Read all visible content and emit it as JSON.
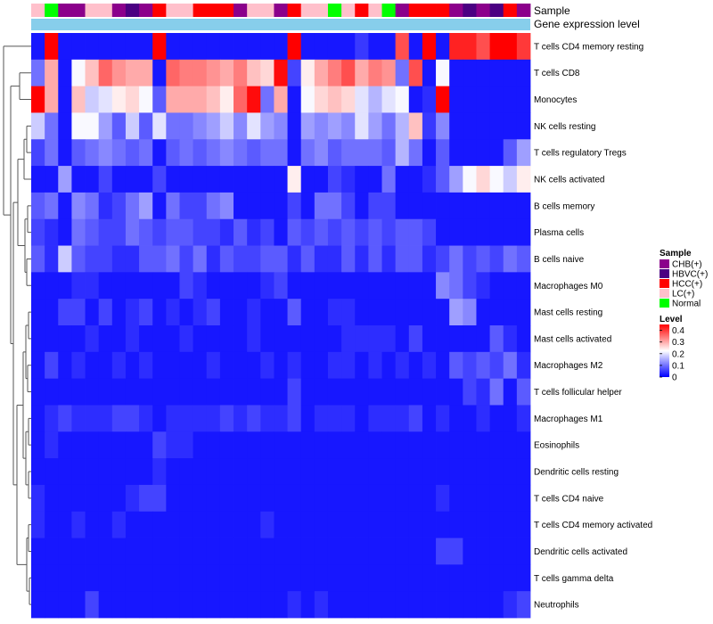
{
  "chart_data": {
    "type": "heatmap",
    "title": "",
    "annotations": [
      {
        "name": "Sample",
        "type": "categorical"
      },
      {
        "name": "Gene expression level",
        "type": "bar",
        "color": "#87ceeb"
      }
    ],
    "sample_groups": [
      {
        "label": "CHB(+)",
        "color": "#8b008b"
      },
      {
        "label": "HBVC(+)",
        "color": "#4b0082"
      },
      {
        "label": "HCC(+)",
        "color": "#ff0000"
      },
      {
        "label": "LC(+)",
        "color": "#ffc0cb"
      },
      {
        "label": "Normal",
        "color": "#00ff00"
      }
    ],
    "sample_annotation": [
      "LC(+)",
      "Normal",
      "CHB(+)",
      "CHB(+)",
      "LC(+)",
      "LC(+)",
      "CHB(+)",
      "HBVC(+)",
      "CHB(+)",
      "HCC(+)",
      "LC(+)",
      "LC(+)",
      "HCC(+)",
      "HCC(+)",
      "HCC(+)",
      "CHB(+)",
      "LC(+)",
      "LC(+)",
      "CHB(+)",
      "HCC(+)",
      "LC(+)",
      "LC(+)",
      "Normal",
      "LC(+)",
      "HCC(+)",
      "LC(+)",
      "Normal",
      "CHB(+)",
      "HCC(+)",
      "HCC(+)",
      "HCC(+)",
      "CHB(+)",
      "HBVC(+)",
      "CHB(+)",
      "HBVC(+)",
      "HCC(+)",
      "CHB(+)"
    ],
    "rows": [
      "T cells CD4 memory resting",
      "T cells CD8",
      "Monocytes",
      "NK cells resting",
      "T cells regulatory  Tregs",
      "NK cells activated",
      "B cells memory",
      "Plasma cells",
      "B cells naive",
      "Macrophages M0",
      "Mast cells resting",
      "Mast cells activated",
      "Macrophages M2",
      "T cells follicular helper",
      "Macrophages M1",
      "Eosinophils",
      "Dendritic cells resting",
      "T cells CD4 naive",
      "T cells CD4 memory activated",
      "Dendritic cells activated",
      "T cells gamma delta",
      "Neutrophils"
    ],
    "legend": {
      "title": "Level",
      "ticks": [
        0,
        0.1,
        0.2,
        0.3,
        0.4
      ],
      "range": [
        0,
        0.45
      ]
    },
    "values": [
      [
        0.02,
        0.45,
        0.02,
        0.02,
        0.02,
        0.02,
        0.02,
        0.02,
        0.02,
        0.45,
        0.02,
        0.02,
        0.02,
        0.02,
        0.02,
        0.02,
        0.02,
        0.02,
        0.02,
        0.45,
        0.02,
        0.02,
        0.02,
        0.02,
        0.05,
        0.02,
        0.02,
        0.38,
        0.02,
        0.45,
        0.02,
        0.42,
        0.42,
        0.38,
        0.45,
        0.45,
        0.4
      ],
      [
        0.1,
        0.3,
        0.02,
        0.22,
        0.28,
        0.36,
        0.32,
        0.3,
        0.3,
        0.02,
        0.36,
        0.34,
        0.34,
        0.32,
        0.3,
        0.34,
        0.28,
        0.26,
        0.44,
        0.06,
        0.24,
        0.3,
        0.34,
        0.38,
        0.3,
        0.34,
        0.32,
        0.1,
        0.38,
        0.02,
        0.22,
        0.02,
        0.02,
        0.02,
        0.02,
        0.02,
        0.02
      ],
      [
        0.45,
        0.3,
        0.02,
        0.28,
        0.18,
        0.2,
        0.24,
        0.26,
        0.22,
        0.08,
        0.3,
        0.3,
        0.3,
        0.28,
        0.24,
        0.36,
        0.44,
        0.1,
        0.3,
        0.02,
        0.22,
        0.26,
        0.28,
        0.26,
        0.2,
        0.16,
        0.2,
        0.22,
        0.02,
        0.04,
        0.45,
        0.02,
        0.02,
        0.02,
        0.02,
        0.02,
        0.02
      ],
      [
        0.18,
        0.1,
        0.02,
        0.22,
        0.22,
        0.14,
        0.08,
        0.18,
        0.08,
        0.2,
        0.1,
        0.1,
        0.12,
        0.14,
        0.18,
        0.12,
        0.2,
        0.14,
        0.12,
        0.02,
        0.14,
        0.12,
        0.14,
        0.12,
        0.2,
        0.14,
        0.1,
        0.16,
        0.28,
        0.05,
        0.12,
        0.02,
        0.02,
        0.02,
        0.02,
        0.02,
        0.02
      ],
      [
        0.06,
        0.1,
        0.02,
        0.08,
        0.1,
        0.12,
        0.1,
        0.08,
        0.1,
        0.02,
        0.08,
        0.1,
        0.08,
        0.1,
        0.12,
        0.1,
        0.08,
        0.1,
        0.1,
        0.02,
        0.1,
        0.12,
        0.08,
        0.1,
        0.1,
        0.1,
        0.08,
        0.16,
        0.1,
        0.02,
        0.08,
        0.02,
        0.02,
        0.02,
        0.02,
        0.08,
        0.14
      ],
      [
        0.02,
        0.02,
        0.14,
        0.02,
        0.02,
        0.06,
        0.02,
        0.02,
        0.02,
        0.06,
        0.02,
        0.02,
        0.02,
        0.02,
        0.02,
        0.02,
        0.02,
        0.02,
        0.02,
        0.24,
        0.02,
        0.02,
        0.06,
        0.04,
        0.02,
        0.02,
        0.1,
        0.02,
        0.02,
        0.04,
        0.08,
        0.14,
        0.22,
        0.26,
        0.22,
        0.18,
        0.24
      ],
      [
        0.08,
        0.1,
        0.02,
        0.12,
        0.1,
        0.04,
        0.06,
        0.1,
        0.14,
        0.02,
        0.1,
        0.06,
        0.06,
        0.1,
        0.12,
        0.02,
        0.02,
        0.02,
        0.02,
        0.06,
        0.02,
        0.1,
        0.1,
        0.06,
        0.02,
        0.06,
        0.06,
        0.02,
        0.02,
        0.02,
        0.02,
        0.02,
        0.02,
        0.02,
        0.02,
        0.02,
        0.02
      ],
      [
        0.06,
        0.04,
        0.02,
        0.1,
        0.08,
        0.06,
        0.06,
        0.1,
        0.08,
        0.06,
        0.08,
        0.08,
        0.06,
        0.06,
        0.04,
        0.08,
        0.04,
        0.06,
        0.02,
        0.08,
        0.06,
        0.08,
        0.06,
        0.08,
        0.06,
        0.08,
        0.06,
        0.08,
        0.08,
        0.06,
        0.02,
        0.02,
        0.02,
        0.02,
        0.02,
        0.02,
        0.02
      ],
      [
        0.08,
        0.04,
        0.18,
        0.08,
        0.06,
        0.06,
        0.04,
        0.04,
        0.08,
        0.08,
        0.1,
        0.06,
        0.1,
        0.04,
        0.08,
        0.06,
        0.06,
        0.08,
        0.08,
        0.04,
        0.08,
        0.04,
        0.04,
        0.08,
        0.04,
        0.08,
        0.04,
        0.08,
        0.08,
        0.04,
        0.06,
        0.1,
        0.06,
        0.08,
        0.06,
        0.1,
        0.08
      ],
      [
        0.02,
        0.02,
        0.02,
        0.04,
        0.04,
        0.02,
        0.02,
        0.02,
        0.02,
        0.02,
        0.02,
        0.06,
        0.04,
        0.02,
        0.02,
        0.02,
        0.02,
        0.04,
        0.06,
        0.02,
        0.02,
        0.02,
        0.02,
        0.02,
        0.02,
        0.02,
        0.02,
        0.02,
        0.02,
        0.02,
        0.12,
        0.1,
        0.06,
        0.04,
        0.02,
        0.02,
        0.02
      ],
      [
        0.02,
        0.02,
        0.06,
        0.06,
        0.02,
        0.06,
        0.02,
        0.04,
        0.06,
        0.02,
        0.04,
        0.02,
        0.04,
        0.06,
        0.02,
        0.02,
        0.04,
        0.02,
        0.02,
        0.08,
        0.02,
        0.02,
        0.04,
        0.04,
        0.02,
        0.02,
        0.02,
        0.02,
        0.02,
        0.02,
        0.02,
        0.14,
        0.12,
        0.02,
        0.02,
        0.02,
        0.02
      ],
      [
        0.02,
        0.02,
        0.02,
        0.02,
        0.04,
        0.02,
        0.02,
        0.04,
        0.02,
        0.02,
        0.02,
        0.04,
        0.02,
        0.02,
        0.02,
        0.02,
        0.04,
        0.02,
        0.02,
        0.02,
        0.02,
        0.02,
        0.02,
        0.04,
        0.04,
        0.04,
        0.04,
        0.02,
        0.06,
        0.02,
        0.02,
        0.02,
        0.02,
        0.02,
        0.08,
        0.04,
        0.02
      ],
      [
        0.02,
        0.06,
        0.02,
        0.04,
        0.02,
        0.02,
        0.04,
        0.02,
        0.04,
        0.02,
        0.02,
        0.02,
        0.02,
        0.04,
        0.02,
        0.02,
        0.02,
        0.04,
        0.02,
        0.04,
        0.02,
        0.02,
        0.04,
        0.04,
        0.02,
        0.04,
        0.02,
        0.04,
        0.02,
        0.04,
        0.02,
        0.08,
        0.06,
        0.08,
        0.06,
        0.1,
        0.04
      ],
      [
        0.02,
        0.02,
        0.02,
        0.02,
        0.02,
        0.02,
        0.02,
        0.02,
        0.02,
        0.02,
        0.02,
        0.02,
        0.02,
        0.02,
        0.02,
        0.02,
        0.02,
        0.02,
        0.02,
        0.06,
        0.02,
        0.02,
        0.02,
        0.02,
        0.02,
        0.02,
        0.02,
        0.02,
        0.02,
        0.02,
        0.02,
        0.02,
        0.06,
        0.04,
        0.1,
        0.02,
        0.08
      ],
      [
        0.02,
        0.04,
        0.06,
        0.04,
        0.04,
        0.04,
        0.06,
        0.06,
        0.04,
        0.02,
        0.04,
        0.04,
        0.04,
        0.04,
        0.06,
        0.04,
        0.06,
        0.04,
        0.04,
        0.06,
        0.02,
        0.04,
        0.04,
        0.04,
        0.02,
        0.04,
        0.04,
        0.04,
        0.06,
        0.02,
        0.04,
        0.02,
        0.02,
        0.04,
        0.02,
        0.02,
        0.04
      ],
      [
        0.02,
        0.04,
        0.02,
        0.02,
        0.02,
        0.02,
        0.02,
        0.02,
        0.02,
        0.06,
        0.04,
        0.04,
        0.02,
        0.02,
        0.02,
        0.02,
        0.02,
        0.02,
        0.02,
        0.02,
        0.02,
        0.02,
        0.02,
        0.02,
        0.02,
        0.02,
        0.02,
        0.02,
        0.02,
        0.02,
        0.02,
        0.02,
        0.02,
        0.02,
        0.02,
        0.02,
        0.02
      ],
      [
        0.02,
        0.02,
        0.02,
        0.02,
        0.02,
        0.02,
        0.02,
        0.02,
        0.02,
        0.04,
        0.02,
        0.02,
        0.02,
        0.02,
        0.02,
        0.02,
        0.02,
        0.02,
        0.02,
        0.02,
        0.02,
        0.02,
        0.02,
        0.02,
        0.02,
        0.02,
        0.02,
        0.02,
        0.02,
        0.02,
        0.02,
        0.02,
        0.02,
        0.02,
        0.02,
        0.02,
        0.02
      ],
      [
        0.04,
        0.02,
        0.02,
        0.02,
        0.02,
        0.02,
        0.02,
        0.04,
        0.06,
        0.06,
        0.02,
        0.02,
        0.02,
        0.02,
        0.02,
        0.02,
        0.02,
        0.02,
        0.02,
        0.02,
        0.02,
        0.02,
        0.02,
        0.02,
        0.02,
        0.02,
        0.02,
        0.02,
        0.02,
        0.02,
        0.04,
        0.02,
        0.02,
        0.02,
        0.02,
        0.02,
        0.02
      ],
      [
        0.04,
        0.02,
        0.02,
        0.04,
        0.02,
        0.02,
        0.04,
        0.02,
        0.02,
        0.02,
        0.02,
        0.02,
        0.02,
        0.02,
        0.02,
        0.02,
        0.02,
        0.04,
        0.02,
        0.02,
        0.02,
        0.02,
        0.02,
        0.02,
        0.02,
        0.02,
        0.02,
        0.02,
        0.02,
        0.02,
        0.02,
        0.02,
        0.02,
        0.02,
        0.02,
        0.02,
        0.02
      ],
      [
        0.02,
        0.02,
        0.02,
        0.02,
        0.02,
        0.02,
        0.02,
        0.02,
        0.02,
        0.02,
        0.02,
        0.02,
        0.02,
        0.02,
        0.02,
        0.02,
        0.02,
        0.02,
        0.02,
        0.02,
        0.02,
        0.02,
        0.02,
        0.02,
        0.02,
        0.02,
        0.02,
        0.02,
        0.02,
        0.02,
        0.06,
        0.06,
        0.02,
        0.02,
        0.02,
        0.02,
        0.02
      ],
      [
        0.02,
        0.02,
        0.02,
        0.02,
        0.02,
        0.02,
        0.02,
        0.02,
        0.02,
        0.02,
        0.02,
        0.02,
        0.02,
        0.02,
        0.02,
        0.02,
        0.02,
        0.02,
        0.02,
        0.02,
        0.02,
        0.02,
        0.02,
        0.02,
        0.02,
        0.02,
        0.02,
        0.02,
        0.02,
        0.02,
        0.02,
        0.02,
        0.02,
        0.02,
        0.02,
        0.02,
        0.02
      ],
      [
        0.02,
        0.02,
        0.02,
        0.02,
        0.06,
        0.02,
        0.02,
        0.02,
        0.02,
        0.02,
        0.02,
        0.02,
        0.02,
        0.02,
        0.02,
        0.02,
        0.02,
        0.02,
        0.02,
        0.04,
        0.02,
        0.04,
        0.02,
        0.02,
        0.02,
        0.02,
        0.02,
        0.02,
        0.02,
        0.02,
        0.02,
        0.02,
        0.02,
        0.02,
        0.02,
        0.04,
        0.06
      ]
    ]
  }
}
